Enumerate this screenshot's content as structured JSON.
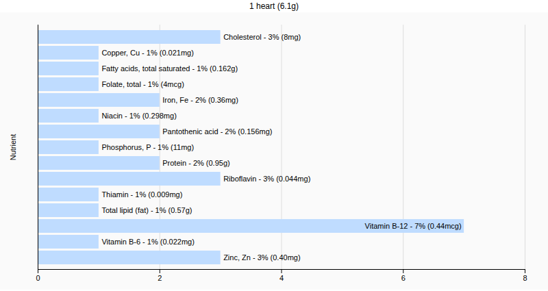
{
  "chart_data": {
    "type": "bar",
    "orientation": "horizontal",
    "title": "1 heart (6.1g)",
    "y_label": "Nutrient",
    "categories": [
      "Cholesterol",
      "Copper, Cu",
      "Fatty acids, total saturated",
      "Folate, total",
      "Iron, Fe",
      "Niacin",
      "Pantothenic acid",
      "Phosphorus, P",
      "Protein",
      "Riboflavin",
      "Thiamin",
      "Total lipid (fat)",
      "Vitamin B-12",
      "Vitamin B-6",
      "Zinc, Zn"
    ],
    "values": [
      3,
      1,
      1,
      1,
      2,
      1,
      2,
      1,
      2,
      3,
      1,
      1,
      7,
      1,
      3
    ],
    "value_labels": [
      "Cholesterol - 3% (8mg)",
      "Copper, Cu - 1% (0.021mg)",
      "Fatty acids, total saturated - 1% (0.162g)",
      "Folate, total - 1% (4mcg)",
      "Iron, Fe - 2% (0.36mg)",
      "Niacin - 1% (0.298mg)",
      "Pantothenic acid - 2% (0.156mg)",
      "Phosphorus, P - 1% (11mg)",
      "Protein - 2% (0.95g)",
      "Riboflavin - 3% (0.044mg)",
      "Thiamin - 1% (0.009mg)",
      "Total lipid (fat) - 1% (0.57g)",
      "Vitamin B-12 - 7% (0.44mcg)",
      "Vitamin B-6 - 1% (0.022mg)",
      "Zinc, Zn - 3% (0.40mg)"
    ],
    "data_labels": true,
    "color": "#bfdcff",
    "xlim": [
      0,
      8
    ],
    "xticks": [
      0,
      2,
      4,
      6,
      8
    ],
    "grid": true,
    "tick_labels": "x"
  }
}
